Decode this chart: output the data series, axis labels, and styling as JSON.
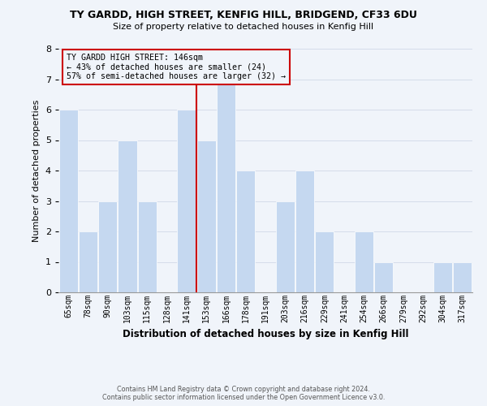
{
  "title": "TY GARDD, HIGH STREET, KENFIG HILL, BRIDGEND, CF33 6DU",
  "subtitle": "Size of property relative to detached houses in Kenfig Hill",
  "xlabel": "Distribution of detached houses by size in Kenfig Hill",
  "ylabel": "Number of detached properties",
  "categories": [
    "65sqm",
    "78sqm",
    "90sqm",
    "103sqm",
    "115sqm",
    "128sqm",
    "141sqm",
    "153sqm",
    "166sqm",
    "178sqm",
    "191sqm",
    "203sqm",
    "216sqm",
    "229sqm",
    "241sqm",
    "254sqm",
    "266sqm",
    "279sqm",
    "292sqm",
    "304sqm",
    "317sqm"
  ],
  "values": [
    6,
    2,
    3,
    5,
    3,
    0,
    6,
    5,
    7,
    4,
    0,
    3,
    4,
    2,
    0,
    2,
    1,
    0,
    0,
    1,
    1
  ],
  "bar_color": "#c5d8f0",
  "bar_edge_color": "#ffffff",
  "highlight_line_index": 6,
  "highlight_line_color": "#cc0000",
  "ylim": [
    0,
    8
  ],
  "yticks": [
    0,
    1,
    2,
    3,
    4,
    5,
    6,
    7,
    8
  ],
  "annotation_title": "TY GARDD HIGH STREET: 146sqm",
  "annotation_line1": "← 43% of detached houses are smaller (24)",
  "annotation_line2": "57% of semi-detached houses are larger (32) →",
  "annotation_box_edge_color": "#cc0000",
  "background_color": "#f0f4fa",
  "footer_line1": "Contains HM Land Registry data © Crown copyright and database right 2024.",
  "footer_line2": "Contains public sector information licensed under the Open Government Licence v3.0."
}
